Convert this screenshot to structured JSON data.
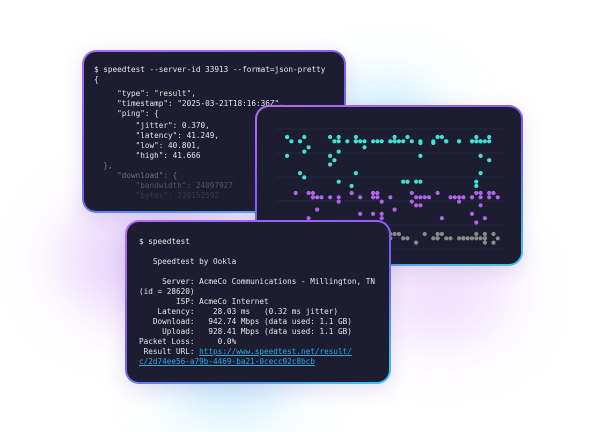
{
  "colors": {
    "card_bg": "#1c1d30",
    "accent_purple": "#b36bf0",
    "accent_cyan": "#3cc8f0",
    "dot_cyan": "#3fe3d6",
    "dot_purple": "#b064ec",
    "dot_gray": "#8a8a8a",
    "link": "#2ea7e0"
  },
  "json_terminal": {
    "lines": [
      "$ speedtest --server-id 33913 --format=json-pretty",
      "{",
      "     \"type\": \"result\",",
      "     \"timestamp\": \"2025-03-21T18:16:36Z\",",
      "     \"ping\": {",
      "         \"jitter\": 0.370,",
      "         \"latency\": 41.249,",
      "         \"low\": 40.801,",
      "         \"high\": 41.666",
      "  },",
      "     \"download\": {",
      "         \"bandwidth\": 24097927",
      "         \"bytes\": 239152592"
    ]
  },
  "text_terminal": {
    "command": "$ speedtest",
    "brand": "   Speedtest by Ookla",
    "lines": [
      "     Server: AcmeCo Communications - Millington, TN",
      "(id = 28620)",
      "        ISP: AcmeCo Internet",
      "    Latency:    28.03 ms   (0.32 ms jitter)",
      "   Download:   942.74 Mbps (data used: 1.1 GB)",
      "     Upload:   928.41 Mbps (data used: 1.1 GB)",
      "Packet Loss:     0.0%"
    ],
    "result_label": " Result URL: ",
    "result_url_1": "https://www.speedtest.net/result/",
    "result_url_2": "c/2d74ee56-a79b-4469-ba21-0cecc92c8bcb"
  }
}
